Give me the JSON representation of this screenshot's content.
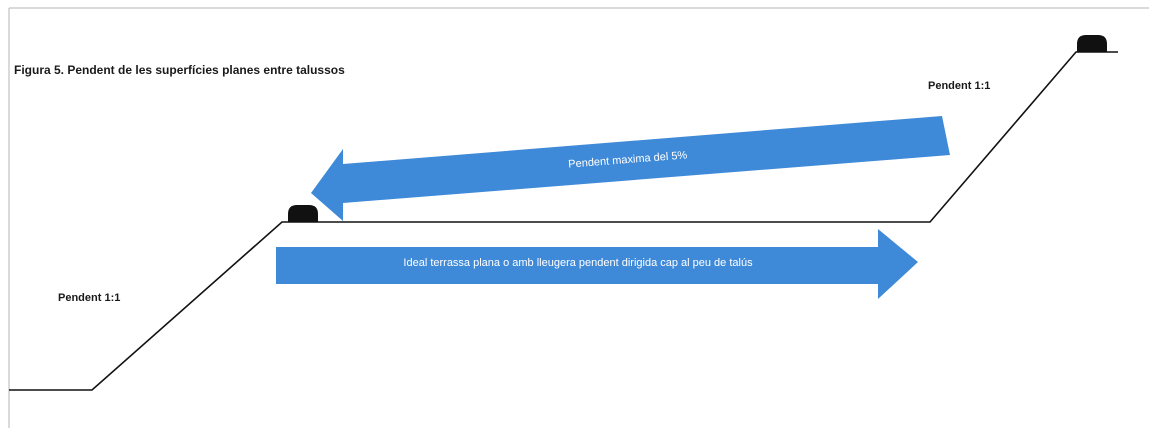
{
  "figure": {
    "caption": "Figura 5. Pendent de les superfícies planes entre talussos"
  },
  "labels": {
    "slope_right": "Pendent 1:1",
    "slope_left": "Pendent 1:1"
  },
  "arrows": {
    "upper_text": "Pendent maxima del 5%",
    "lower_text": "Ideal terrassa plana o amb lleugera pendent dirigida cap al peu de talús"
  },
  "colors": {
    "arrow_fill": "#3f8ad8",
    "arrow_text": "#ffffff",
    "line": "#111111",
    "marker": "#111111"
  }
}
